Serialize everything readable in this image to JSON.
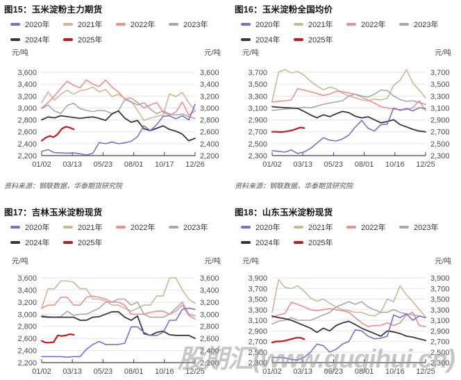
{
  "watermark": {
    "text": "股期汇(www.guqihui.cn)"
  },
  "legend": [
    {
      "label": "2020年",
      "color": "#7470d6"
    },
    {
      "label": "2021年",
      "color": "#cfb792"
    },
    {
      "label": "2022年",
      "color": "#ef8e8c"
    },
    {
      "label": "2023年",
      "color": "#a7a7a7"
    },
    {
      "label": "2024年",
      "color": "#363636"
    },
    {
      "label": "2025年",
      "color": "#c9161c"
    }
  ],
  "chart_data": [
    {
      "type": "line",
      "title": "图15：玉米淀粉主力期货",
      "unit_left": "元/吨",
      "unit_right": "元/吨",
      "source": "资料来源：钢联数据，华泰期货研究院",
      "ylim": [
        2200,
        3600
      ],
      "ystep": 200,
      "yticklabels": [
        "3,600",
        "3,400",
        "3,200",
        "3,000",
        "2,800",
        "2,600",
        "2,400",
        "2,200"
      ],
      "xticklabels": [
        "01/02",
        "03/13",
        "05/23",
        "08/01",
        "10/17",
        "12/26"
      ],
      "series": [
        {
          "name": "2021年",
          "values": [
            3090,
            3270,
            3130,
            3230,
            3300,
            3230,
            3290,
            3310,
            3350,
            3270,
            3310,
            3190,
            3230,
            3160,
            3110,
            2960,
            2790,
            2830,
            2860,
            2880,
            3240,
            3190,
            3260,
            3090,
            2960
          ]
        },
        {
          "name": "2022年",
          "values": [
            3000,
            3090,
            3200,
            3330,
            3450,
            3380,
            3340,
            3470,
            3400,
            3360,
            3470,
            3350,
            3270,
            3150,
            3170,
            3090,
            3000,
            3050,
            3090,
            2930,
            2880,
            2930,
            3100,
            2880,
            2950
          ]
        },
        {
          "name": "2023年",
          "values": [
            2990,
            3050,
            2950,
            2910,
            3040,
            3080,
            2990,
            2960,
            2940,
            2960,
            2950,
            2905,
            2950,
            3140,
            3100,
            3050,
            3090,
            2980,
            2905,
            2950,
            2900,
            2880,
            2900,
            2855,
            2825
          ]
        },
        {
          "name": "2024年",
          "values": [
            2800,
            2850,
            2835,
            2870,
            2855,
            2840,
            2825,
            2840,
            2850,
            2825,
            2790,
            2900,
            2950,
            2830,
            2760,
            2790,
            2650,
            2620,
            2660,
            2700,
            2640,
            2610,
            2560,
            2450,
            2490
          ]
        },
        {
          "name": "2020年",
          "values": [
            2270,
            2300,
            2250,
            2245,
            2240,
            2245,
            2230,
            2210,
            2240,
            2420,
            2400,
            2430,
            2400,
            2415,
            2440,
            2520,
            2700,
            2620,
            2720,
            2860,
            2870,
            2820,
            2870,
            2800,
            3060
          ]
        },
        {
          "name": "2025年",
          "xspan": [
            0,
            0.21
          ],
          "values": [
            2450,
            2500,
            2530,
            2510,
            2560,
            2650,
            2685,
            2670,
            2640
          ]
        }
      ]
    },
    {
      "type": "line",
      "title": "图16：玉米淀粉全国均价",
      "unit_left": "元/吨",
      "unit_right": "元/吨",
      "source": "资料来源：钢联数据，华泰期货研究院",
      "ylim": [
        2300,
        3700
      ],
      "ystep": 200,
      "yticklabels": [
        "3,700",
        "3,500",
        "3,300",
        "3,100",
        "2,900",
        "2,700",
        "2,500",
        "2,300"
      ],
      "xticklabels": [
        "01/02",
        "03/13",
        "05/23",
        "08/01",
        "10/16",
        "12/25"
      ],
      "series": [
        {
          "name": "2021年",
          "values": [
            3210,
            3700,
            3745,
            3690,
            3712,
            3650,
            3550,
            3470,
            3405,
            3450,
            3420,
            3350,
            3305,
            3270,
            3235,
            3222,
            3252,
            3235,
            3262,
            3480,
            3565,
            3745,
            3520,
            3400,
            3270
          ]
        },
        {
          "name": "2022年",
          "values": [
            3200,
            3212,
            3222,
            3235,
            3425,
            3400,
            3372,
            3342,
            3312,
            3332,
            3382,
            3372,
            3352,
            3330,
            3282,
            3232,
            3182,
            3122,
            3100,
            3082,
            3072,
            3075,
            3102,
            3222,
            3052
          ]
        },
        {
          "name": "2023年",
          "values": [
            3060,
            3070,
            3080,
            3090,
            3100,
            3112,
            3102,
            3132,
            3162,
            3182,
            3202,
            3222,
            3302,
            3332,
            3302,
            3282,
            3332,
            3402,
            3392,
            3302,
            3242,
            3212,
            3222,
            3190,
            3160
          ]
        },
        {
          "name": "2024年",
          "values": [
            3122,
            3112,
            3105,
            3100,
            3092,
            3042,
            2982,
            2935,
            2985,
            2955,
            3002,
            3042,
            3022,
            2962,
            2932,
            2952,
            2902,
            2852,
            2872,
            2902,
            2822,
            2782,
            2742,
            2712,
            2700
          ]
        },
        {
          "name": "2020年",
          "values": [
            2380,
            2372,
            2358,
            2395,
            2335,
            2362,
            2420,
            2510,
            2600,
            2560,
            2545,
            2580,
            2645,
            2780,
            2890,
            2760,
            2712,
            2820,
            2830,
            3100,
            3060,
            3090,
            3050,
            3105,
            3090
          ]
        },
        {
          "name": "2025年",
          "xspan": [
            0,
            0.21
          ],
          "values": [
            2700,
            2700,
            2696,
            2700,
            2712,
            2725,
            2748,
            2772,
            2762
          ]
        }
      ]
    },
    {
      "type": "line",
      "title": "图17：吉林玉米淀粉现货",
      "unit_left": "元/吨",
      "unit_right": "元/吨",
      "ylim": [
        2200,
        3600
      ],
      "ystep": 200,
      "yticklabels": [
        "3,600",
        "3,400",
        "3,200",
        "3,000",
        "2,800",
        "2,600",
        "2,400",
        "2,200"
      ],
      "xticklabels": [
        "01/02",
        "03/13",
        "05/23",
        "08/01",
        "10/16",
        "12/25"
      ],
      "series": [
        {
          "name": "2021年",
          "values": [
            3100,
            3420,
            3420,
            3550,
            3550,
            3530,
            3420,
            3420,
            3250,
            3250,
            3220,
            3150,
            3150,
            3100,
            3050,
            3100,
            3150,
            3150,
            3300,
            3300,
            3600,
            3600,
            3400,
            3250,
            3180
          ]
        },
        {
          "name": "2022年",
          "values": [
            3100,
            3150,
            3150,
            3280,
            3280,
            3150,
            3150,
            3280,
            3300,
            3280,
            3250,
            3200,
            3200,
            3150,
            3000,
            3000,
            3000,
            3030,
            3050,
            3050,
            3000,
            3050,
            3150,
            2980,
            2920
          ]
        },
        {
          "name": "2023年",
          "values": [
            2980,
            2960,
            2950,
            2960,
            3050,
            2980,
            3000,
            3000,
            3050,
            3100,
            3200,
            3200,
            3250,
            3250,
            3150,
            3200,
            3000,
            2950,
            2950,
            2950,
            3000,
            3100,
            3200,
            3000,
            2970
          ]
        },
        {
          "name": "2024年",
          "values": [
            2960,
            2950,
            2950,
            2950,
            2950,
            2950,
            2900,
            2900,
            2950,
            2960,
            3000,
            3040,
            3040,
            2950,
            2900,
            2970,
            2680,
            2650,
            2700,
            2720,
            2660,
            2650,
            2650,
            2650,
            2600
          ]
        },
        {
          "name": "2020年",
          "values": [
            2300,
            2300,
            2300,
            2300,
            2290,
            2300,
            2300,
            2420,
            2500,
            2550,
            2500,
            2500,
            2500,
            2520,
            2790,
            2790,
            2700,
            2650,
            2650,
            2700,
            2900,
            2900,
            3080,
            3100,
            3080
          ]
        },
        {
          "name": "2025年",
          "xspan": [
            0,
            0.21
          ],
          "values": [
            2560,
            2530,
            2530,
            2540,
            2650,
            2640,
            2650,
            2670,
            2660
          ]
        }
      ]
    },
    {
      "type": "line",
      "title": "图18：山东玉米淀粉现货",
      "unit_left": "元/吨",
      "unit_right": "元/吨",
      "ylim": [
        2300,
        3900
      ],
      "ystep": 200,
      "yticklabels": [
        "3,900",
        "3,700",
        "3,500",
        "3,300",
        "3,100",
        "2,900",
        "2,700",
        "2,500",
        "2,300"
      ],
      "xticklabels": [
        "01/02",
        "03/13",
        "05/23",
        "08/01",
        "10/16",
        "12/25"
      ],
      "series": [
        {
          "name": "2021年",
          "values": [
            3250,
            3870,
            3720,
            3700,
            3750,
            3650,
            3520,
            3460,
            3500,
            3420,
            3350,
            3300,
            3280,
            3250,
            3250,
            3200,
            3180,
            3250,
            3500,
            3450,
            3750,
            3580,
            3450,
            3300,
            3170
          ]
        },
        {
          "name": "2022年",
          "values": [
            3150,
            3200,
            3230,
            3440,
            3400,
            3350,
            3300,
            3280,
            3300,
            3320,
            3300,
            3280,
            3250,
            3150,
            3050,
            2980,
            3000,
            3000,
            3050,
            3000,
            3050,
            3200,
            3250,
            3000,
            2980
          ]
        },
        {
          "name": "2023年",
          "values": [
            3030,
            3080,
            3100,
            3150,
            3100,
            3100,
            3100,
            3150,
            3200,
            3250,
            3350,
            3400,
            3450,
            3400,
            3450,
            3350,
            3300,
            3250,
            3250,
            3300,
            3250,
            3220,
            3200,
            3180,
            3150
          ]
        },
        {
          "name": "2024年",
          "values": [
            3180,
            3150,
            3130,
            3100,
            3050,
            3000,
            2950,
            2870,
            2950,
            2900,
            3000,
            3050,
            3080,
            3020,
            2950,
            2900,
            2850,
            2800,
            2900,
            2880,
            2850,
            2800,
            2780,
            2750,
            2720
          ]
        },
        {
          "name": "2020年",
          "values": [
            2400,
            2400,
            2390,
            2360,
            2350,
            2400,
            2500,
            2650,
            2620,
            2500,
            2550,
            2650,
            2700,
            2920,
            2900,
            2800,
            2750,
            2760,
            2800,
            3200,
            3150,
            3220,
            3100,
            3180,
            3150
          ]
        },
        {
          "name": "2025年",
          "xspan": [
            0,
            0.21
          ],
          "values": [
            2680,
            2700,
            2700,
            2710,
            2730,
            2750,
            2770,
            2770,
            2740
          ]
        }
      ]
    }
  ]
}
